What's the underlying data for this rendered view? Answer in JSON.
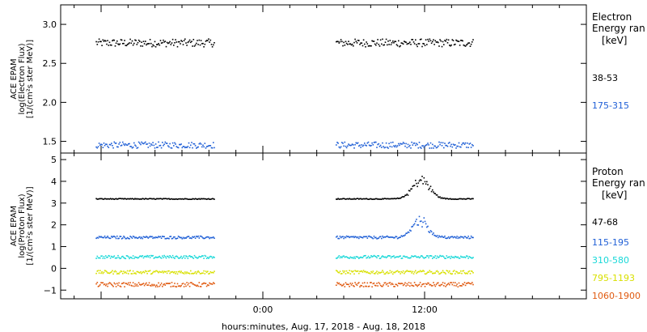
{
  "chart_data": [
    {
      "type": "scatter",
      "ylabel": [
        "ACE EPAM",
        "log(Electron Flux)",
        "[1/(cm²s ster MeV)]"
      ],
      "ylim": [
        1.35,
        3.25
      ],
      "yticks": [
        1.5,
        2.0,
        2.5,
        3.0
      ],
      "yticklabels": [
        "1.5",
        "2.0",
        "2.5",
        "3.0"
      ],
      "legend": {
        "title": [
          "Electron",
          "Energy ran"
        ],
        "unit": "[keV]",
        "entries": [
          "38-53",
          "175-315"
        ]
      },
      "series": [
        {
          "name": "38-53",
          "color": "#000000",
          "level": 2.77,
          "jitter": 0.05,
          "segments": [
            [
              -12.4,
              -3.6
            ],
            [
              5.4,
              15.6
            ]
          ]
        },
        {
          "name": "175-315",
          "color": "#1f5fd6",
          "level": 1.46,
          "jitter": 0.04,
          "segments": [
            [
              -12.4,
              -3.6
            ],
            [
              5.4,
              15.6
            ]
          ]
        }
      ]
    },
    {
      "type": "scatter",
      "ylabel": [
        "ACE EPAM",
        "log(Proton Flux)",
        "[1/(cm²s ster MeV)]"
      ],
      "ylim": [
        -1.4,
        5.3
      ],
      "yticks": [
        -1,
        0,
        1,
        2,
        3,
        4,
        5
      ],
      "yticklabels": [
        "−1",
        "0",
        "1",
        "2",
        "3",
        "4",
        "5"
      ],
      "legend": {
        "title": [
          "Proton",
          "Energy ran"
        ],
        "unit": "[keV]",
        "entries": [
          "47-68",
          "115-195",
          "310-580",
          "795-1193",
          "1060-1900"
        ]
      },
      "series": [
        {
          "name": "47-68",
          "color": "#000000",
          "level": 3.22,
          "jitter": 0.02,
          "segments": [
            [
              -12.4,
              -3.6
            ],
            [
              5.4,
              15.6
            ]
          ],
          "event": {
            "center": 11.7,
            "width": 0.9,
            "amp": 0.85
          }
        },
        {
          "name": "115-195",
          "color": "#1f5fd6",
          "level": 1.45,
          "jitter": 0.06,
          "segments": [
            [
              -12.4,
              -3.6
            ],
            [
              5.4,
              15.6
            ]
          ],
          "event": {
            "center": 11.6,
            "width": 0.8,
            "amp": 0.8
          }
        },
        {
          "name": "310-580",
          "color": "#18d8d8",
          "level": 0.55,
          "jitter": 0.07,
          "segments": [
            [
              -12.4,
              -3.6
            ],
            [
              5.4,
              15.6
            ]
          ]
        },
        {
          "name": "795-1193",
          "color": "#d8e000",
          "level": -0.15,
          "jitter": 0.08,
          "segments": [
            [
              -12.4,
              -3.6
            ],
            [
              5.4,
              15.6
            ]
          ]
        },
        {
          "name": "1060-1900",
          "color": "#e05a10",
          "level": -0.72,
          "jitter": 0.1,
          "segments": [
            [
              -12.4,
              -3.6
            ],
            [
              5.4,
              15.6
            ]
          ]
        }
      ]
    }
  ],
  "xaxis": {
    "range": [
      -15,
      24
    ],
    "ticks": [
      0,
      12
    ],
    "ticklabels": [
      "0:00",
      "12:00"
    ],
    "label": "hours:minutes, Aug. 17, 2018 - Aug. 18, 2018"
  }
}
